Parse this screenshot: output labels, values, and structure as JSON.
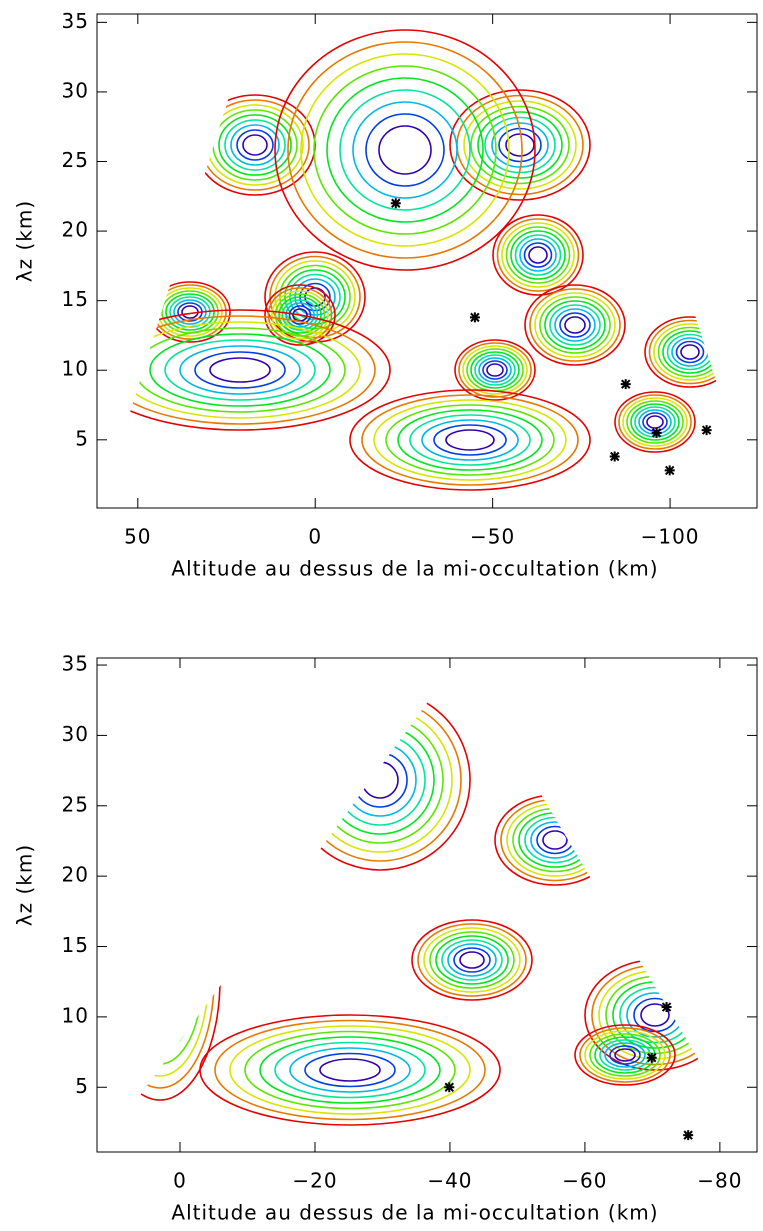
{
  "chart_data": [
    {
      "type": "scatter",
      "xlabel": "Altitude au dessus de la mi-occultation (km)",
      "ylabel": "λz (km)",
      "xlim": [
        61.5,
        -124.5
      ],
      "ylim": [
        0.1,
        35.6
      ],
      "xticks": [
        50,
        0,
        {
          "value": -50,
          "label": "−50"
        },
        {
          "value": -100,
          "label": "−100"
        }
      ],
      "yticks": [
        5,
        10,
        15,
        20,
        25,
        30,
        35
      ],
      "color": "#000000",
      "x": [
        -22.7,
        -45.0,
        -87.5,
        -96.2,
        -84.4,
        -110.3,
        -99.9
      ],
      "y": [
        22.0,
        13.8,
        9.0,
        5.5,
        3.8,
        5.7,
        2.8
      ]
    },
    {
      "type": "scatter",
      "xlabel": "Altitude au dessus de la mi-occultation (km)",
      "ylabel": "λz (km)",
      "xlim": [
        12.3,
        -85.5
      ],
      "ylim": [
        0.4,
        35.5
      ],
      "xticks": [
        0,
        {
          "value": -20,
          "label": "−20"
        },
        {
          "value": -40,
          "label": "−40"
        },
        {
          "value": -60,
          "label": "−60"
        },
        {
          "value": -80,
          "label": "−80"
        }
      ],
      "yticks": [
        5,
        10,
        15,
        20,
        25,
        30,
        35
      ],
      "color": "#000000",
      "x": [
        -39.9,
        -72.1,
        -69.9,
        -75.3
      ],
      "y": [
        5.0,
        10.7,
        7.1,
        1.6
      ]
    }
  ]
}
